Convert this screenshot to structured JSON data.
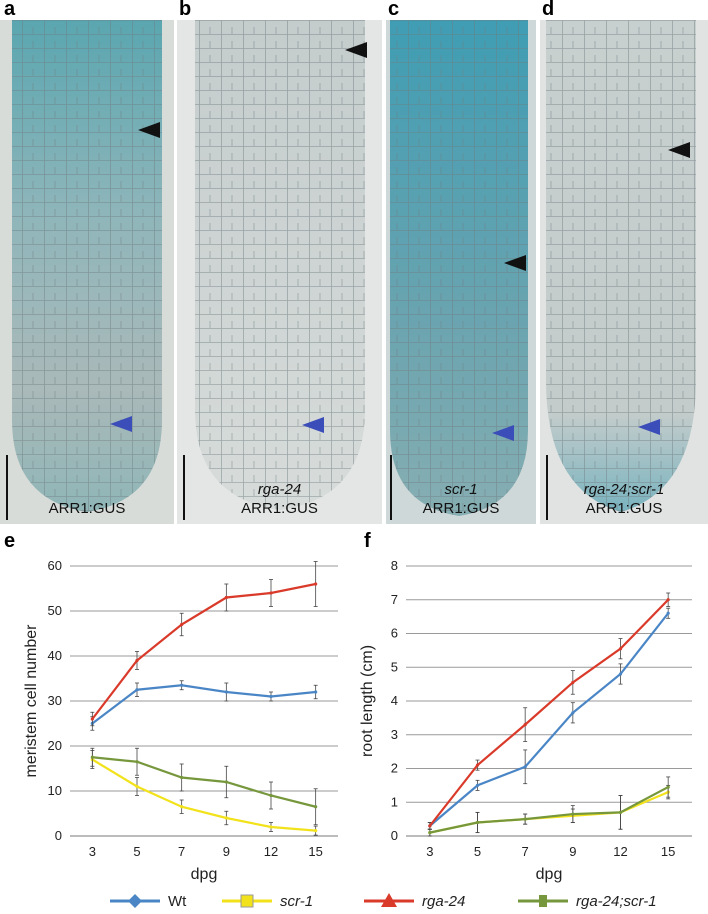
{
  "panels": [
    {
      "letter": "a",
      "label_italic": "",
      "label": "ARR1:GUS"
    },
    {
      "letter": "b",
      "label_italic": "rga-24",
      "label": "ARR1:GUS"
    },
    {
      "letter": "c",
      "label_italic": "scr-1",
      "label": "ARR1:GUS"
    },
    {
      "letter": "d",
      "label_italic": "rga-24;scr-1",
      "label": "ARR1:GUS"
    }
  ],
  "chart_letters": {
    "e": "e",
    "f": "f"
  },
  "chart_data": [
    {
      "type": "line",
      "panel": "e",
      "xlabel": "dpg",
      "ylabel": "meristem cell number",
      "categories": [
        "3",
        "5",
        "7",
        "9",
        "12",
        "15"
      ],
      "ylim": [
        0,
        60
      ],
      "yticks": [
        0,
        10,
        20,
        30,
        40,
        50,
        60
      ],
      "series": [
        {
          "name": "Wt",
          "color": "#4a86c6",
          "values": [
            25,
            32.5,
            33.5,
            32,
            31,
            32
          ],
          "errors": [
            1.5,
            1.5,
            1,
            2,
            1,
            1.5
          ]
        },
        {
          "name": "scr-1",
          "color": "#f2e21b",
          "values": [
            17,
            11,
            6.5,
            4,
            2,
            1.2
          ],
          "errors": [
            2,
            2,
            1.5,
            1.5,
            1,
            1
          ]
        },
        {
          "name": "rga-24",
          "color": "#d93a2a",
          "values": [
            26,
            39,
            47,
            53,
            54,
            56
          ],
          "errors": [
            1.5,
            2,
            2.5,
            3,
            3,
            5
          ]
        },
        {
          "name": "rga-24;scr-1",
          "color": "#76973c",
          "values": [
            17.5,
            16.5,
            13,
            12,
            9,
            6.5
          ],
          "errors": [
            2,
            3,
            3,
            3.5,
            3,
            4
          ]
        }
      ]
    },
    {
      "type": "line",
      "panel": "f",
      "xlabel": "dpg",
      "ylabel": "root length (cm)",
      "categories": [
        "3",
        "5",
        "7",
        "9",
        "12",
        "15"
      ],
      "ylim": [
        0,
        8
      ],
      "yticks": [
        0,
        1,
        2,
        3,
        4,
        5,
        6,
        7,
        8
      ],
      "series": [
        {
          "name": "Wt",
          "color": "#4a86c6",
          "values": [
            0.3,
            1.5,
            2.05,
            3.65,
            4.8,
            6.6
          ],
          "errors": [
            0.1,
            0.15,
            0.5,
            0.3,
            0.3,
            0.15
          ]
        },
        {
          "name": "scr-1",
          "color": "#f2e21b",
          "values": [
            0.1,
            0.4,
            0.5,
            0.6,
            0.7,
            1.3
          ],
          "errors": [
            0.1,
            0.3,
            0.15,
            0.2,
            0.5,
            0.2
          ]
        },
        {
          "name": "rga-24",
          "color": "#d93a2a",
          "values": [
            0.3,
            2.1,
            3.3,
            4.55,
            5.55,
            7.0
          ],
          "errors": [
            0.1,
            0.15,
            0.5,
            0.35,
            0.3,
            0.2
          ]
        },
        {
          "name": "rga-24;scr-1",
          "color": "#76973c",
          "values": [
            0.1,
            0.4,
            0.5,
            0.65,
            0.7,
            1.45
          ],
          "errors": [
            0.1,
            0.3,
            0.15,
            0.25,
            0.5,
            0.3
          ]
        }
      ]
    }
  ],
  "legend": [
    {
      "name": "Wt",
      "italic": false,
      "color": "#4a86c6",
      "marker": "diamond"
    },
    {
      "name": "scr-1",
      "italic": true,
      "color": "#f2e21b",
      "marker": "square"
    },
    {
      "name": "rga-24",
      "italic": true,
      "color": "#d93a2a",
      "marker": "triangle"
    },
    {
      "name": "rga-24;scr-1",
      "italic": true,
      "color": "#76973c",
      "marker": "cross"
    }
  ]
}
